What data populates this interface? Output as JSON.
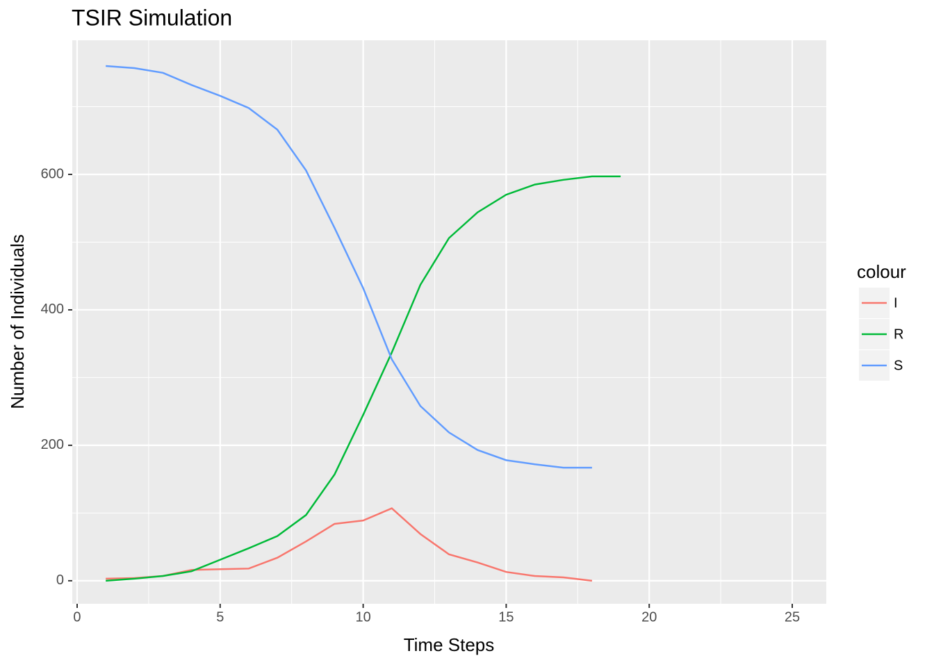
{
  "chart_data": {
    "type": "line",
    "title": "TSIR Simulation",
    "x_label": "Time Steps",
    "y_label": "Number of Individuals",
    "legend_title": "colour",
    "legend_position": "right",
    "xlim": [
      -0.17,
      26.19
    ],
    "ylim": [
      -34,
      798
    ],
    "xticks": [
      0,
      5,
      10,
      15,
      20,
      25
    ],
    "yticks": [
      0,
      200,
      400,
      600
    ],
    "grid": true,
    "series": [
      {
        "name": "I",
        "color": "#F8766D",
        "x": [
          1,
          2,
          3,
          4,
          5,
          6,
          7,
          8,
          9,
          10,
          11,
          12,
          13,
          14,
          15,
          16,
          17,
          18
        ],
        "values": [
          3,
          4,
          7,
          16,
          17,
          18,
          34,
          58,
          84,
          89,
          107,
          69,
          39,
          27,
          13,
          7,
          5,
          0
        ]
      },
      {
        "name": "R",
        "color": "#00BA38",
        "x": [
          1,
          2,
          3,
          4,
          5,
          6,
          7,
          8,
          9,
          10,
          11,
          12,
          13,
          14,
          15,
          16,
          17,
          18,
          19
        ],
        "values": [
          0,
          3,
          7,
          14,
          31,
          48,
          66,
          97,
          157,
          245,
          337,
          437,
          506,
          544,
          570,
          585,
          592,
          597,
          597
        ]
      },
      {
        "name": "S",
        "color": "#619CFF",
        "x": [
          1,
          2,
          3,
          4,
          5,
          6,
          7,
          8,
          9,
          10,
          11,
          12,
          13,
          14,
          15,
          16,
          17,
          18
        ],
        "values": [
          760,
          757,
          750,
          732,
          716,
          698,
          666,
          606,
          521,
          432,
          327,
          258,
          219,
          193,
          178,
          172,
          167,
          167
        ]
      }
    ]
  }
}
